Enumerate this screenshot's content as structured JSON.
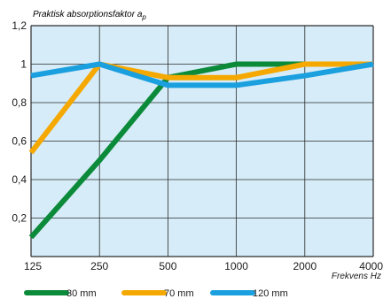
{
  "chart_data": {
    "type": "line",
    "title_main": "Praktisk absorptionsfaktor a",
    "title_sub": "p",
    "xlabel": "Frekvens Hz",
    "ylabel": "",
    "categories": [
      "125",
      "250",
      "500",
      "1000",
      "2000",
      "4000"
    ],
    "y_ticks": [
      "0,2",
      "0,4",
      "0,6",
      "0,8",
      "1",
      "1,2"
    ],
    "ylim": [
      0,
      1.2
    ],
    "grid": true,
    "legend_position": "bottom",
    "plot_background": "#d6ecf8",
    "series": [
      {
        "name": "30 mm",
        "color": "#0b8a3a",
        "values": [
          0.1,
          0.5,
          0.93,
          1.0,
          1.0,
          1.0
        ]
      },
      {
        "name": "70 mm",
        "color": "#f5a800",
        "values": [
          0.54,
          1.0,
          0.93,
          0.93,
          1.0,
          1.0
        ]
      },
      {
        "name": "120 mm",
        "color": "#1a9fdf",
        "values": [
          0.94,
          1.0,
          0.89,
          0.89,
          0.94,
          1.0
        ]
      }
    ]
  }
}
